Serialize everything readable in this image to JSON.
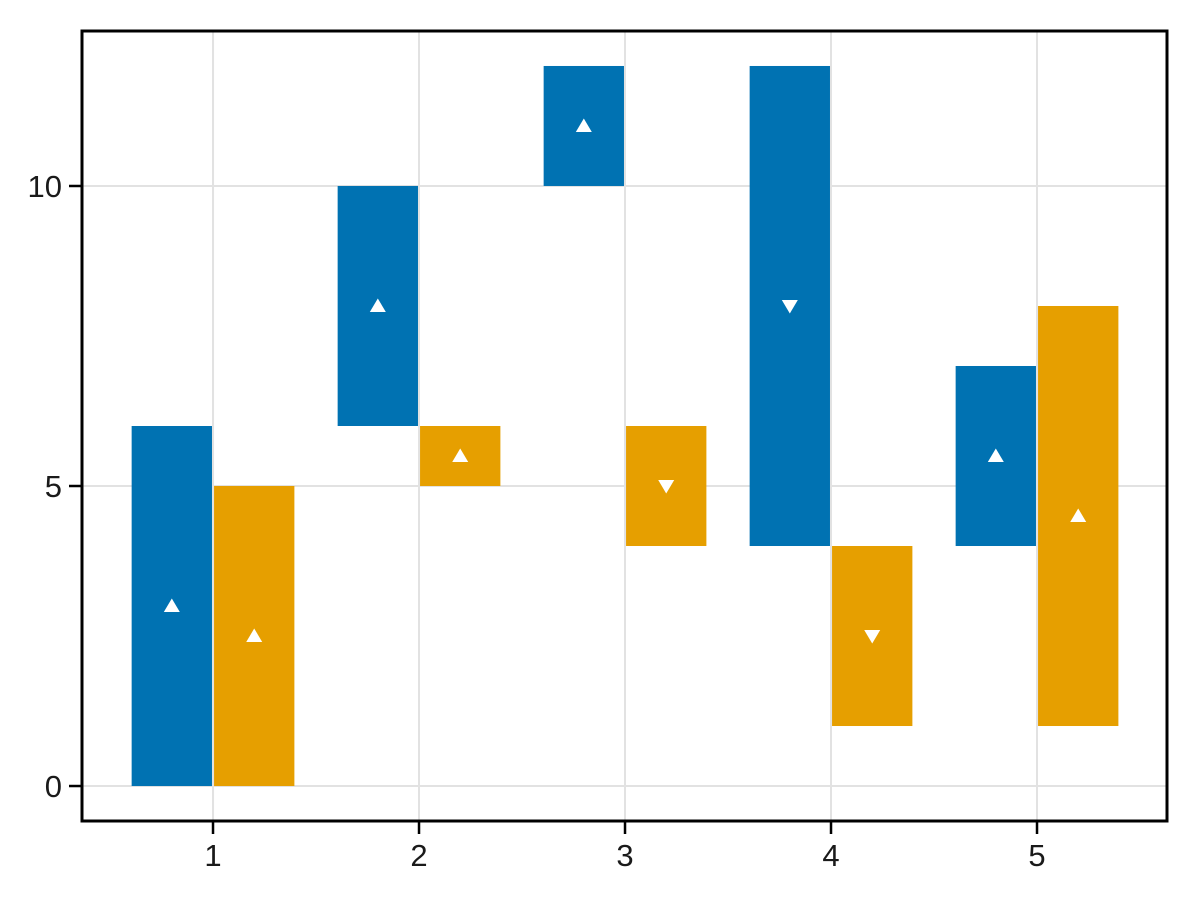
{
  "chart_data": {
    "type": "bar",
    "variant": "grouped-floating-range-bars-with-direction-markers",
    "title": "",
    "xlabel": "",
    "ylabel": "",
    "x_tick_values": [
      1,
      2,
      3,
      4,
      5
    ],
    "x_tick_labels": [
      "1",
      "2",
      "3",
      "4",
      "5"
    ],
    "y_tick_values": [
      0,
      5,
      10
    ],
    "y_tick_labels": [
      "0",
      "5",
      "10"
    ],
    "xlim": [
      0.364,
      5.631
    ],
    "ylim": [
      -0.583,
      12.583
    ],
    "grid": true,
    "legend": "none",
    "bar_width": 0.39,
    "marker_color": "#ffffff",
    "series": [
      {
        "name": "blue",
        "color": "#0072B2",
        "bars": [
          {
            "x": 0.8,
            "low": 0,
            "high": 6,
            "marker_y": 3,
            "marker": "triangle-up"
          },
          {
            "x": 1.8,
            "low": 6,
            "high": 10,
            "marker_y": 8,
            "marker": "triangle-up"
          },
          {
            "x": 2.8,
            "low": 10,
            "high": 12,
            "marker_y": 11,
            "marker": "triangle-up"
          },
          {
            "x": 3.8,
            "low": 4,
            "high": 12,
            "marker_y": 8,
            "marker": "triangle-down"
          },
          {
            "x": 4.8,
            "low": 4,
            "high": 7,
            "marker_y": 5.5,
            "marker": "triangle-up"
          }
        ]
      },
      {
        "name": "orange",
        "color": "#E69F00",
        "bars": [
          {
            "x": 1.2,
            "low": 0,
            "high": 5,
            "marker_y": 2.5,
            "marker": "triangle-up"
          },
          {
            "x": 2.2,
            "low": 5,
            "high": 6,
            "marker_y": 5.5,
            "marker": "triangle-up"
          },
          {
            "x": 3.2,
            "low": 4,
            "high": 6,
            "marker_y": 5,
            "marker": "triangle-down"
          },
          {
            "x": 4.2,
            "low": 1,
            "high": 4,
            "marker_y": 2.5,
            "marker": "triangle-down"
          },
          {
            "x": 5.2,
            "low": 1,
            "high": 8,
            "marker_y": 4.5,
            "marker": "triangle-up"
          }
        ]
      }
    ]
  },
  "style": {
    "background": "#ffffff",
    "grid_color": "#e2e2e2",
    "spine_color": "#000000",
    "tick_color": "#000000",
    "tick_label_color": "#1a1a1a"
  }
}
